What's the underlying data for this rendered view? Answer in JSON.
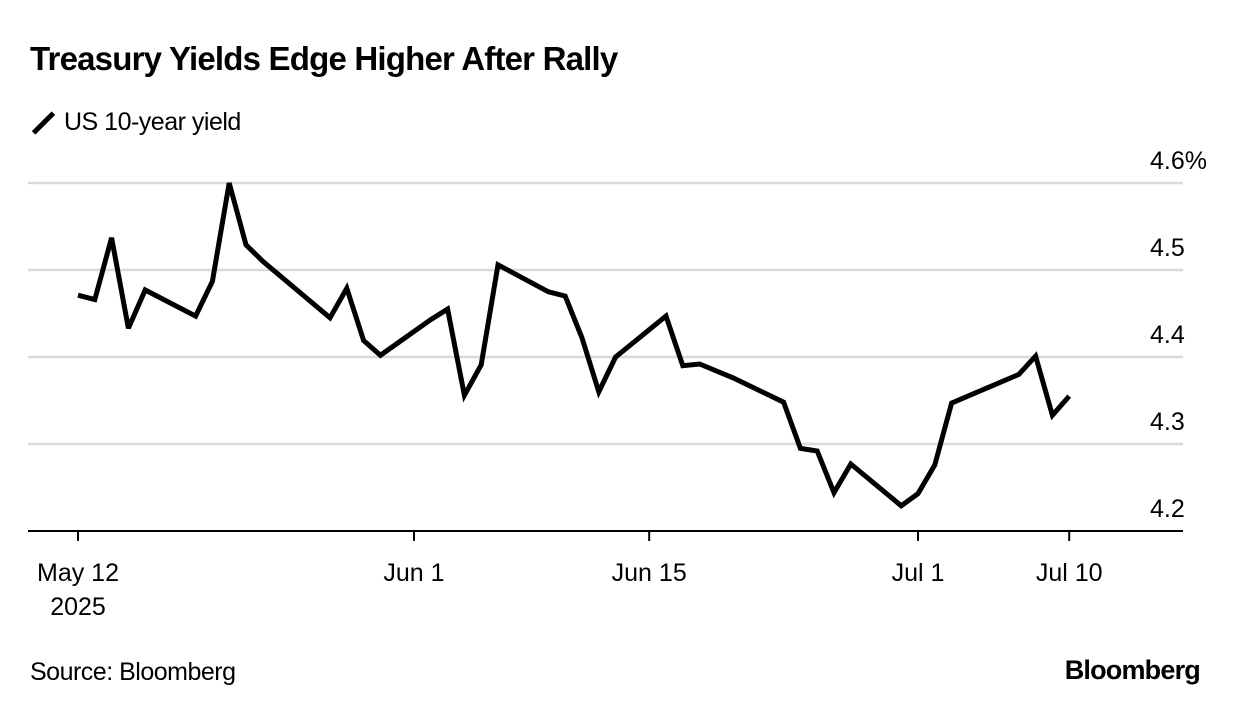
{
  "header": {
    "title": "Treasury Yields Edge Higher After Rally"
  },
  "legend": {
    "icon": "line-swatch-icon",
    "label": "US 10-year yield"
  },
  "footer": {
    "source": "Source: Bloomberg",
    "brand": "Bloomberg"
  },
  "colors": {
    "line": "#000000",
    "grid": "#d9d9d9",
    "axis": "#000000"
  },
  "chart_data": {
    "type": "line",
    "title": "Treasury Yields Edge Higher After Rally",
    "xlabel": "",
    "ylabel": "",
    "ylim": [
      4.2,
      4.6
    ],
    "y_ticks": [
      {
        "value": 4.6,
        "label": "4.6%"
      },
      {
        "value": 4.5,
        "label": "4.5"
      },
      {
        "value": 4.4,
        "label": "4.4"
      },
      {
        "value": 4.3,
        "label": "4.3"
      },
      {
        "value": 4.2,
        "label": "4.2"
      }
    ],
    "x_ticks": [
      {
        "date": "2025-05-12",
        "label": "May 12",
        "sublabel": "2025"
      },
      {
        "date": "2025-06-01",
        "label": "Jun 1"
      },
      {
        "date": "2025-06-15",
        "label": "Jun 15"
      },
      {
        "date": "2025-07-01",
        "label": "Jul 1"
      },
      {
        "date": "2025-07-10",
        "label": "Jul 10"
      }
    ],
    "xlim": [
      "2025-05-12",
      "2025-07-15"
    ],
    "grid": true,
    "legend_position": "top-left",
    "series": [
      {
        "name": "US 10-year yield",
        "x": [
          "2025-05-12",
          "2025-05-13",
          "2025-05-14",
          "2025-05-15",
          "2025-05-16",
          "2025-05-19",
          "2025-05-20",
          "2025-05-21",
          "2025-05-22",
          "2025-05-23",
          "2025-05-27",
          "2025-05-28",
          "2025-05-29",
          "2025-05-30",
          "2025-06-02",
          "2025-06-03",
          "2025-06-04",
          "2025-06-05",
          "2025-06-06",
          "2025-06-09",
          "2025-06-10",
          "2025-06-11",
          "2025-06-12",
          "2025-06-13",
          "2025-06-16",
          "2025-06-17",
          "2025-06-18",
          "2025-06-20",
          "2025-06-23",
          "2025-06-24",
          "2025-06-25",
          "2025-06-26",
          "2025-06-27",
          "2025-06-30",
          "2025-07-01",
          "2025-07-02",
          "2025-07-03",
          "2025-07-07",
          "2025-07-08",
          "2025-07-09",
          "2025-07-10"
        ],
        "values": [
          4.471,
          4.466,
          4.537,
          4.433,
          4.477,
          4.447,
          4.487,
          4.6,
          4.529,
          4.51,
          4.445,
          4.479,
          4.419,
          4.402,
          4.443,
          4.455,
          4.356,
          4.391,
          4.506,
          4.475,
          4.47,
          4.422,
          4.36,
          4.4,
          4.447,
          4.39,
          4.392,
          4.376,
          4.348,
          4.295,
          4.292,
          4.244,
          4.277,
          4.229,
          4.243,
          4.276,
          4.347,
          4.38,
          4.401,
          4.333,
          4.355
        ]
      }
    ]
  }
}
